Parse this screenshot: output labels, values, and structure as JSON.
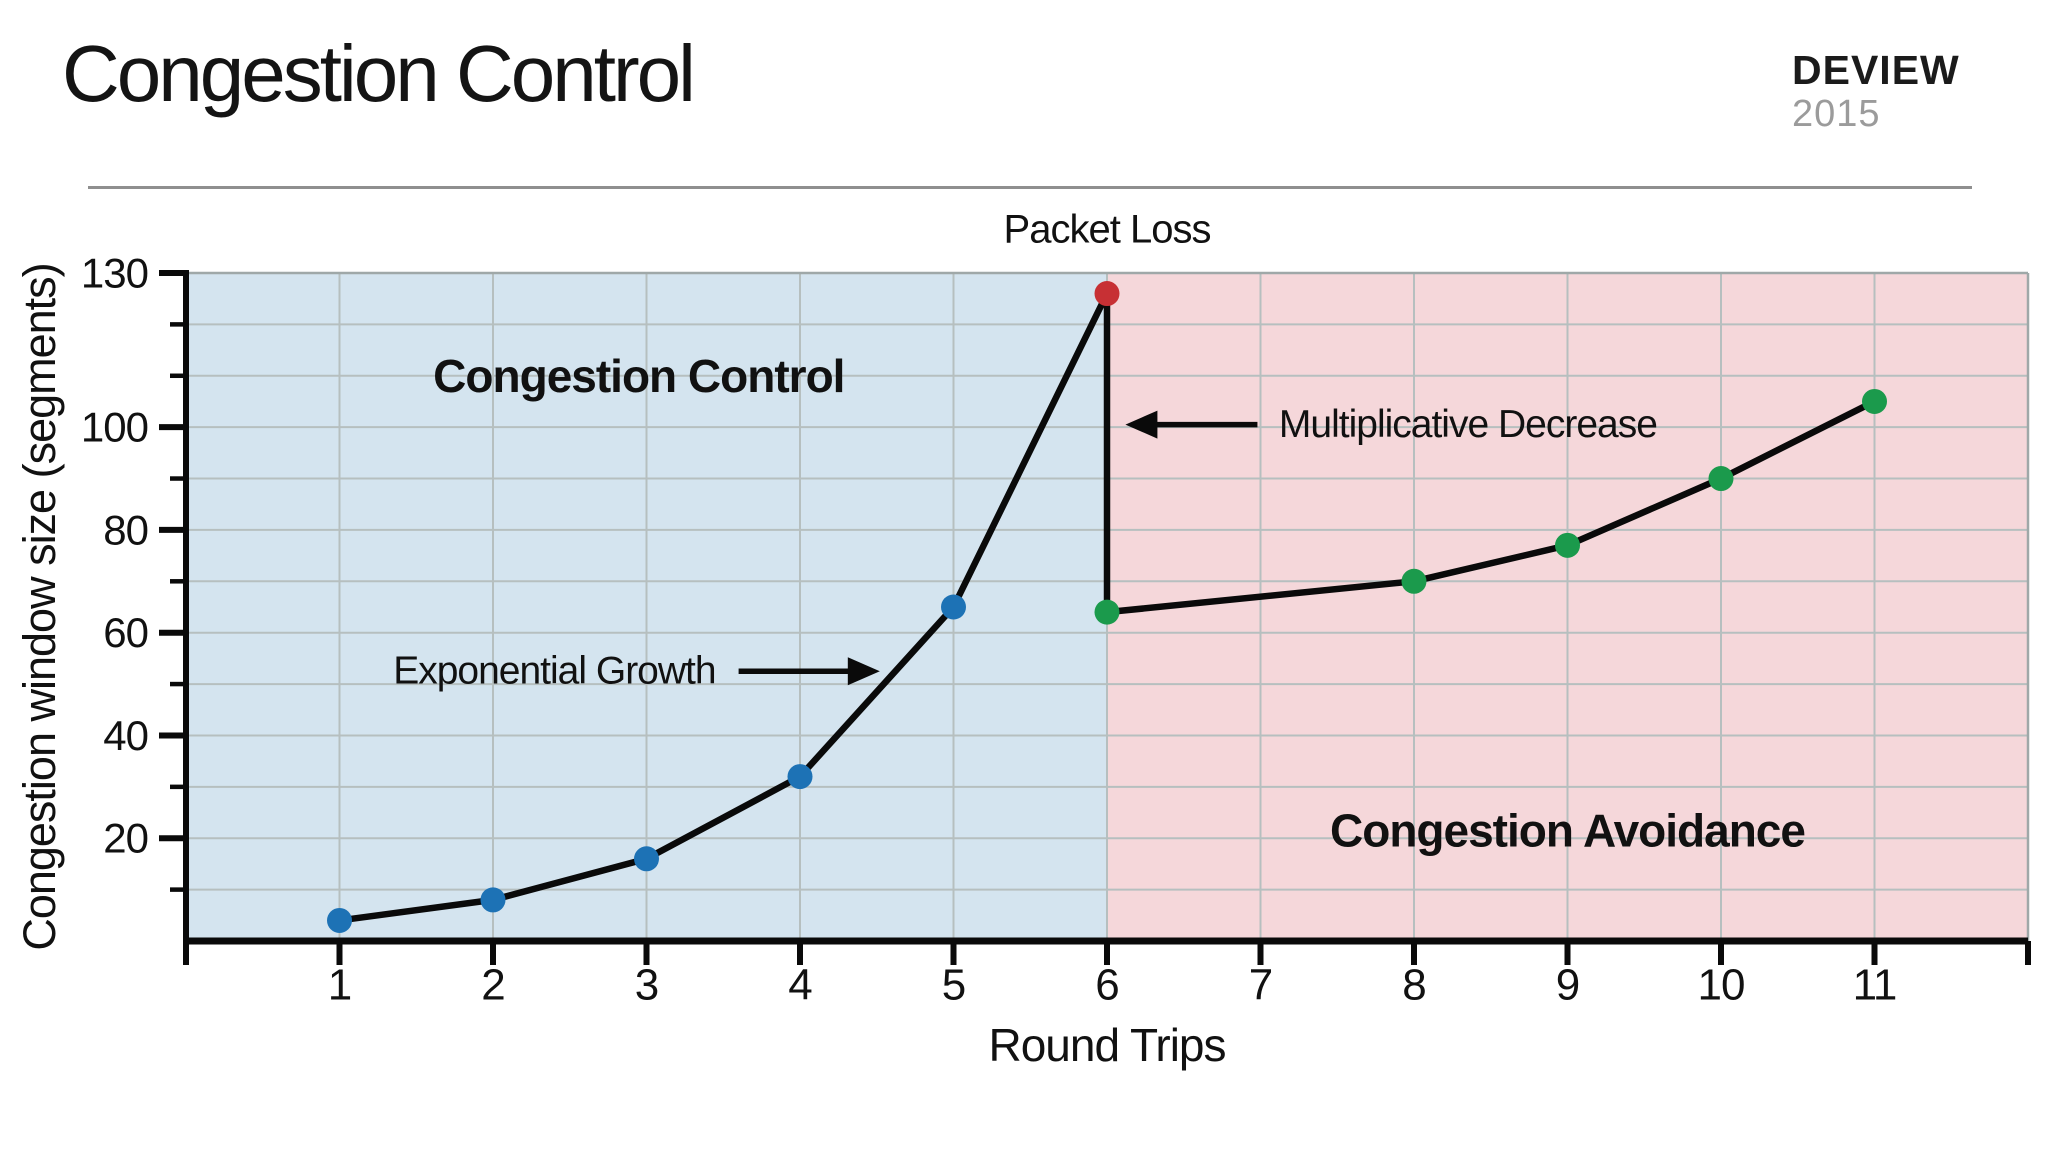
{
  "slide": {
    "title": "Congestion Control",
    "brand": {
      "name": "DEVIEW",
      "year": "2015"
    }
  },
  "chart_data": {
    "type": "line",
    "xlabel": "Round Trips",
    "ylabel": "Congestion window size (segments)",
    "xlim": [
      0,
      12
    ],
    "ylim": [
      0,
      130
    ],
    "x_tick_labels": [
      1,
      2,
      3,
      4,
      5,
      6,
      7,
      8,
      9,
      10,
      11
    ],
    "x_edge_ticks": [
      0,
      12
    ],
    "y_major_ticks": [
      20,
      40,
      60,
      80,
      100,
      130
    ],
    "y_minor_ticks": [
      10,
      30,
      50,
      70,
      90,
      110,
      120
    ],
    "grid": {
      "x_step": 1,
      "y_step": 10,
      "color": "#b6bfbf"
    },
    "axis_color": "#0a0a0a",
    "border_color": "#9fa8a8",
    "regions": [
      {
        "name": "slow-start-region",
        "label": "Congestion Control",
        "x0": 0,
        "x1": 6,
        "fill": "#d4e4ef",
        "label_x": 2.95,
        "label_y": 110
      },
      {
        "name": "avoidance-region",
        "label": "Congestion Avoidance",
        "x0": 6,
        "x1": 12,
        "fill": "#f5d7da",
        "label_x": 9.0,
        "label_y": 21.5
      }
    ],
    "line": {
      "color": "#0a0a0a",
      "width": 6.5,
      "points": [
        [
          1,
          4
        ],
        [
          2,
          8
        ],
        [
          3,
          16
        ],
        [
          4,
          32
        ],
        [
          5,
          65
        ],
        [
          6,
          126
        ],
        [
          6,
          64
        ],
        [
          8,
          70
        ],
        [
          9,
          77
        ],
        [
          10,
          90
        ],
        [
          11,
          105
        ]
      ]
    },
    "markers": [
      {
        "x": 1,
        "y": 4,
        "color": "#1d72b5"
      },
      {
        "x": 2,
        "y": 8,
        "color": "#1d72b5"
      },
      {
        "x": 3,
        "y": 16,
        "color": "#1d72b5"
      },
      {
        "x": 4,
        "y": 32,
        "color": "#1d72b5"
      },
      {
        "x": 5,
        "y": 65,
        "color": "#1d72b5"
      },
      {
        "x": 6,
        "y": 126,
        "color": "#c73034"
      },
      {
        "x": 6,
        "y": 64,
        "color": "#1b9a4c"
      },
      {
        "x": 8,
        "y": 70,
        "color": "#1b9a4c"
      },
      {
        "x": 9,
        "y": 77,
        "color": "#1b9a4c"
      },
      {
        "x": 10,
        "y": 90,
        "color": "#1b9a4c"
      },
      {
        "x": 11,
        "y": 105,
        "color": "#1b9a4c"
      }
    ],
    "annotations": [
      {
        "name": "packet-loss-label",
        "text": "Packet Loss",
        "x": 6,
        "y": 138.5,
        "anchor": "middle",
        "size": 40
      },
      {
        "name": "exponential-growth-label",
        "text": "Exponential Growth",
        "x": 3.45,
        "y": 52.5,
        "anchor": "end",
        "size": 39,
        "arrow": {
          "x1": 3.6,
          "y1": 52.5,
          "x2": 4.52,
          "y2": 52.5
        }
      },
      {
        "name": "multiplicative-decrease-label",
        "text": "Multiplicative Decrease",
        "x": 7.12,
        "y": 100.5,
        "anchor": "start",
        "size": 39,
        "arrow": {
          "x1": 6.98,
          "y1": 100.5,
          "x2": 6.12,
          "y2": 100.5
        }
      }
    ],
    "tick_label_size": 42,
    "x_tick_label_size": 44,
    "region_label_size": 46,
    "axis_label_size": 46
  }
}
